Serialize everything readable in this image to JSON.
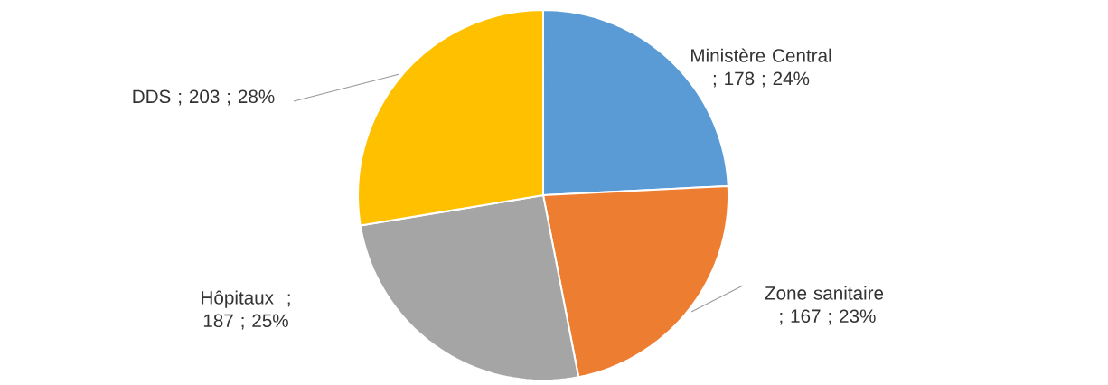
{
  "chart_data": {
    "type": "pie",
    "categories": [
      "Ministère Central",
      "Zone sanitaire ",
      "Hôpitaux ",
      "DDS"
    ],
    "values": [
      178,
      167,
      187,
      203
    ],
    "colors": [
      "#5b9bd5",
      "#ed7d31",
      "#a5a5a5",
      "#ffc000"
    ],
    "value_labels": [
      "; 178 ; 24%",
      "; 167 ; 23%",
      "; 187 ; 25%",
      "; 203 ; 28%"
    ]
  }
}
